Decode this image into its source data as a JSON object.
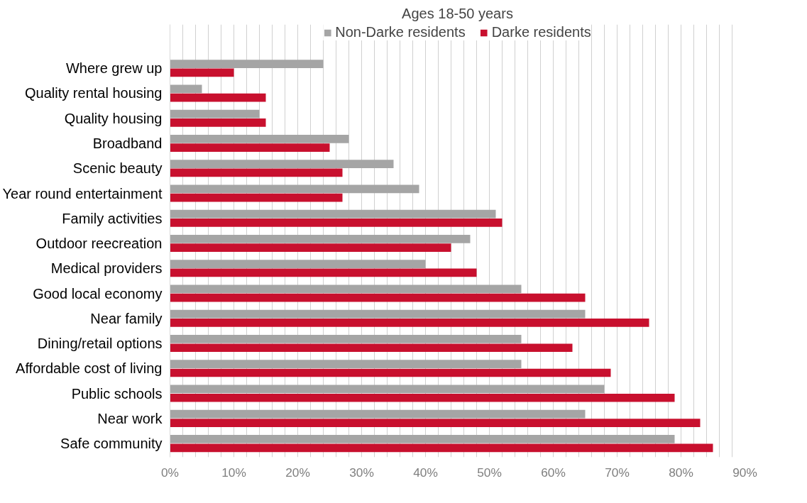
{
  "chart_data": {
    "type": "bar",
    "orientation": "horizontal",
    "title": "Ages 18-50 years",
    "categories": [
      "Where grew up",
      "Quality rental housing",
      "Quality housing",
      "Broadband",
      "Scenic beauty",
      "Year round entertainment",
      "Family activities",
      "Outdoor reecreation",
      "Medical providers",
      "Good local economy",
      "Near family",
      "Dining/retail options",
      "Affordable cost of living",
      "Public schools",
      "Near work",
      "Safe community"
    ],
    "series": [
      {
        "name": "Non-Darke residents",
        "color": "#a5a5a5",
        "values": [
          24,
          5,
          14,
          28,
          35,
          39,
          51,
          47,
          40,
          55,
          65,
          55,
          55,
          68,
          65,
          79
        ]
      },
      {
        "name": "Darke residents",
        "color": "#c8102e",
        "values": [
          10,
          15,
          15,
          25,
          27,
          27,
          52,
          44,
          48,
          65,
          75,
          63,
          69,
          79,
          83,
          85
        ]
      }
    ],
    "xlim": [
      0,
      90
    ],
    "xticks": [
      {
        "value": 0,
        "label": "0%"
      },
      {
        "value": 2,
        "label": null
      },
      {
        "value": 4,
        "label": null
      },
      {
        "value": 6,
        "label": null
      },
      {
        "value": 8,
        "label": null
      },
      {
        "value": 10,
        "label": "10%"
      },
      {
        "value": 12,
        "label": null
      },
      {
        "value": 14,
        "label": null
      },
      {
        "value": 16,
        "label": null
      },
      {
        "value": 18,
        "label": null
      },
      {
        "value": 20,
        "label": "20%"
      },
      {
        "value": 22,
        "label": null
      },
      {
        "value": 24,
        "label": null
      },
      {
        "value": 26,
        "label": null
      },
      {
        "value": 28,
        "label": null
      },
      {
        "value": 30,
        "label": "30%"
      },
      {
        "value": 32,
        "label": null
      },
      {
        "value": 34,
        "label": null
      },
      {
        "value": 36,
        "label": null
      },
      {
        "value": 38,
        "label": null
      },
      {
        "value": 40,
        "label": "40%"
      },
      {
        "value": 42,
        "label": null
      },
      {
        "value": 44,
        "label": null
      },
      {
        "value": 46,
        "label": null
      },
      {
        "value": 48,
        "label": null
      },
      {
        "value": 50,
        "label": "50%"
      },
      {
        "value": 52,
        "label": null
      },
      {
        "value": 54,
        "label": null
      },
      {
        "value": 56,
        "label": null
      },
      {
        "value": 58,
        "label": null
      },
      {
        "value": 60,
        "label": "60%"
      },
      {
        "value": 62,
        "label": null
      },
      {
        "value": 64,
        "label": null
      },
      {
        "value": 66,
        "label": null
      },
      {
        "value": 68,
        "label": null
      },
      {
        "value": 70,
        "label": "70%"
      },
      {
        "value": 72,
        "label": null
      },
      {
        "value": 74,
        "label": null
      },
      {
        "value": 76,
        "label": null
      },
      {
        "value": 78,
        "label": null
      },
      {
        "value": 80,
        "label": "80%"
      },
      {
        "value": 82,
        "label": null
      },
      {
        "value": 84,
        "label": null
      },
      {
        "value": 86,
        "label": null
      },
      {
        "value": 88,
        "label": null
      },
      {
        "value": 90,
        "label": "90%"
      }
    ],
    "grid": "x",
    "legend": "top"
  }
}
